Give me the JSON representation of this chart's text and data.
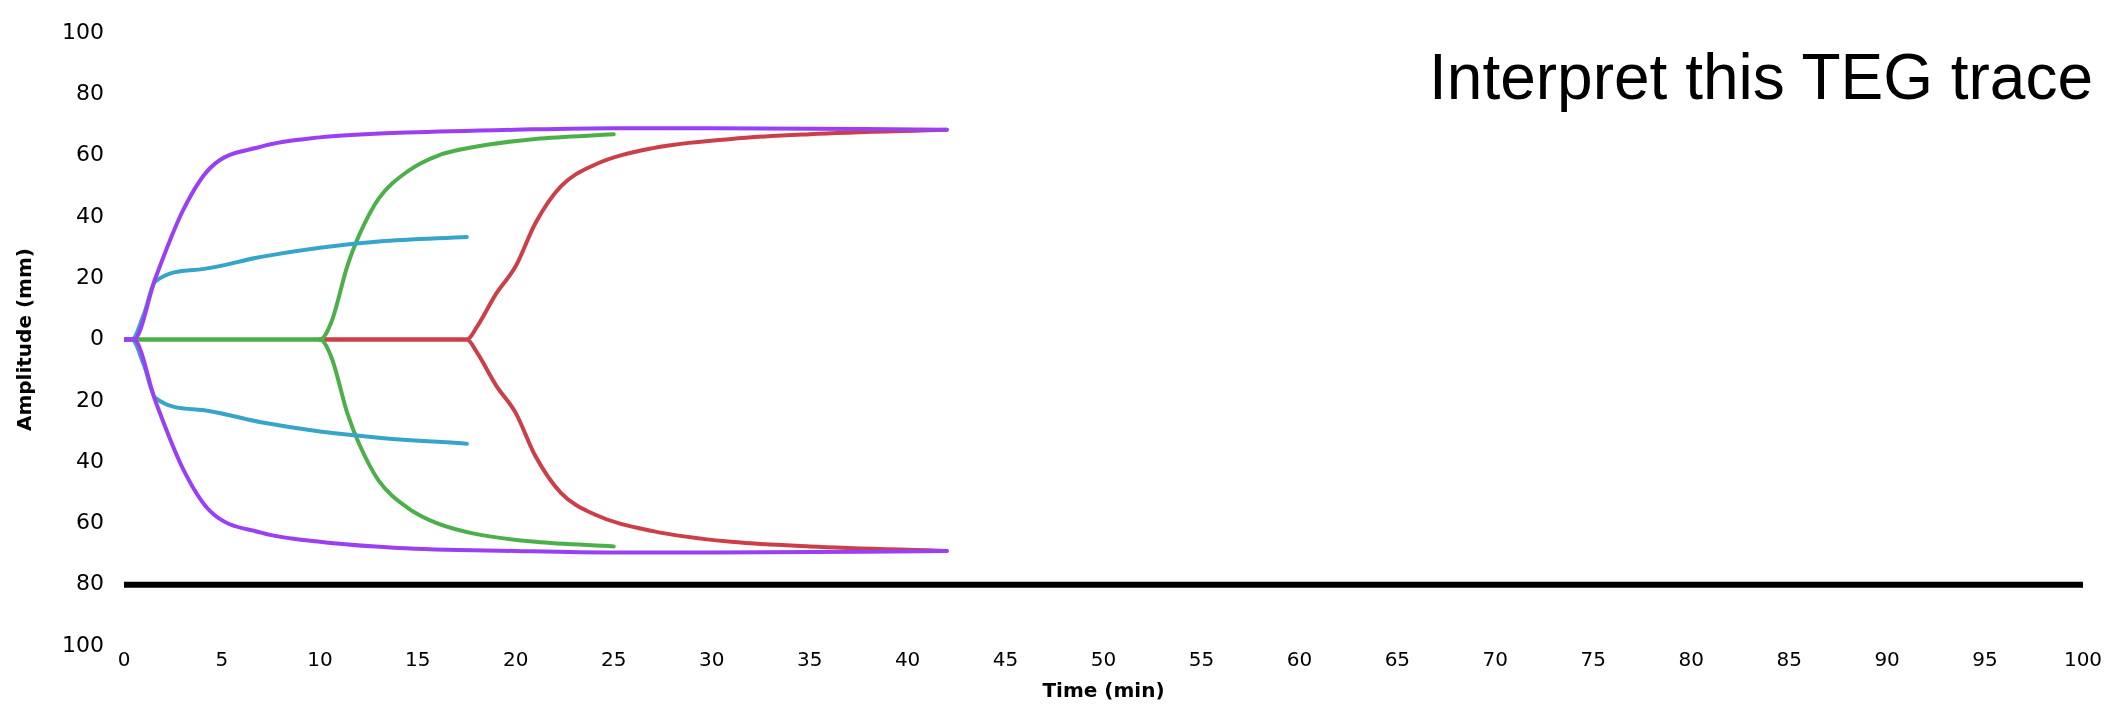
{
  "chart_data": {
    "type": "line",
    "title": "Interpret this TEG trace",
    "xlabel": "Time (min)",
    "ylabel": "Amplitude (mm)",
    "xlim": [
      0,
      100
    ],
    "xticks": [
      0,
      5,
      10,
      15,
      20,
      25,
      30,
      35,
      40,
      45,
      50,
      55,
      60,
      65,
      70,
      75,
      80,
      85,
      90,
      95,
      100
    ],
    "ylim": [
      -100,
      100
    ],
    "yticks": [
      100,
      80,
      60,
      40,
      20,
      0,
      {
        "value": -20,
        "label": "20"
      },
      {
        "value": -40,
        "label": "40"
      },
      {
        "value": -60,
        "label": "60"
      },
      {
        "value": -80,
        "label": "80"
      },
      {
        "value": -100,
        "label": "100"
      }
    ],
    "grid": false,
    "legend": false,
    "marker": "none",
    "line_style": "solid",
    "ref_lines": [
      {
        "axis": "y",
        "value": -80,
        "color": "#000000"
      }
    ],
    "series": [
      {
        "color": "#9b3ff5",
        "x": [
          0,
          0.5,
          1.6,
          3,
          4.4,
          7,
          10,
          14,
          20,
          25,
          30,
          42
        ],
        "values": [
          0,
          0,
          20,
          42,
          56,
          63,
          66,
          67.5,
          68.5,
          69,
          69,
          68.5
        ]
      },
      {
        "color": "#9b3ff5",
        "x": [
          0,
          0.5,
          1.6,
          3,
          4.4,
          7,
          10,
          14,
          20,
          25,
          30,
          42
        ],
        "values": [
          0,
          0,
          -20,
          -42,
          -56,
          -63,
          -66,
          -68,
          -69,
          -69.5,
          -69.5,
          -69
        ]
      },
      {
        "color": "#36a5c9",
        "x": [
          0,
          0.4,
          1,
          1.6,
          4,
          7,
          10,
          13,
          17.5
        ],
        "values": [
          0,
          0,
          8,
          19,
          23,
          27,
          30,
          32,
          33.5
        ]
      },
      {
        "color": "#36a5c9",
        "x": [
          0,
          0.4,
          1,
          1.6,
          4,
          7,
          10,
          13,
          17.5
        ],
        "values": [
          0,
          0,
          -8,
          -19,
          -23,
          -27,
          -30,
          -32,
          -34
        ]
      },
      {
        "color": "#4cb04a",
        "x": [
          0,
          10,
          10.6,
          11.4,
          12,
          13,
          14.5,
          16,
          18,
          21,
          25
        ],
        "values": [
          0,
          0,
          6,
          24,
          34,
          46,
          55,
          60,
          63,
          65.5,
          67
        ]
      },
      {
        "color": "#4cb04a",
        "x": [
          0,
          10,
          10.6,
          11.4,
          12,
          13,
          14.5,
          16,
          18,
          21,
          25
        ],
        "values": [
          0,
          0,
          -6,
          -24,
          -34,
          -46,
          -55,
          -60,
          -63.5,
          -66,
          -67.5
        ]
      },
      {
        "color": "#cc3f48",
        "x": [
          10,
          17.5,
          18,
          19,
          20,
          21,
          22.3,
          24,
          27,
          31,
          35,
          42
        ],
        "values": [
          0,
          0,
          4,
          15,
          24,
          38,
          50,
          57,
          62.5,
          65.5,
          67,
          68.5
        ]
      },
      {
        "color": "#cc3f48",
        "x": [
          10,
          17.5,
          18,
          19,
          20,
          21,
          22.3,
          24,
          27,
          31,
          35,
          42
        ],
        "values": [
          0,
          0,
          -4,
          -15,
          -24,
          -38,
          -50,
          -57,
          -62.5,
          -66,
          -67.5,
          -69
        ]
      }
    ]
  }
}
